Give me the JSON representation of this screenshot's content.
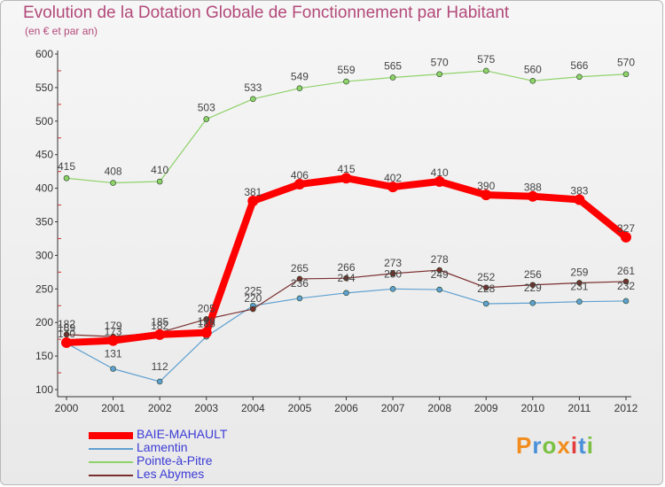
{
  "header": {
    "title": "Evolution de la Dotation Globale de Fonctionnement par Habitant",
    "subtitle": "(en € et par an)"
  },
  "logo": {
    "letters": [
      "P",
      "r",
      "o",
      "x",
      "i",
      "t",
      "i"
    ],
    "colors": [
      "#f28c1c",
      "#4a90d9",
      "#7ac143",
      "#f28c1c",
      "#e23c3c",
      "#4a90d9",
      "#7ac143"
    ]
  },
  "chart_data": {
    "type": "line",
    "title": "Evolution de la Dotation Globale de Fonctionnement par Habitant",
    "subtitle": "(en € et par an)",
    "x": [
      2000,
      2001,
      2002,
      2003,
      2004,
      2005,
      2006,
      2007,
      2008,
      2009,
      2010,
      2011,
      2012
    ],
    "xlabels": [
      "2000",
      "2001",
      "2002",
      "2003",
      "2004",
      "2005",
      "2006",
      "2007",
      "2008",
      "2009",
      "2010",
      "2011",
      "2012"
    ],
    "ylim": [
      100,
      600
    ],
    "yticks": [
      100,
      150,
      200,
      250,
      300,
      350,
      400,
      450,
      500,
      550,
      600
    ],
    "grid": false,
    "legend_position": "bottom-left",
    "series": [
      {
        "name": "BAIE-MAHAULT",
        "color": "#ff0000",
        "values": [
          170,
          173,
          182,
          185,
          381,
          406,
          415,
          402,
          410,
          390,
          388,
          383,
          327
        ],
        "labels": [
          "170",
          "173",
          "182",
          "185",
          "381",
          "406",
          "415",
          "402",
          "410",
          "390",
          "388",
          "383",
          "327"
        ]
      },
      {
        "name": "Lamentin",
        "color": "#5fa0d0",
        "values": [
          169,
          131,
          112,
          179,
          225,
          236,
          244,
          250,
          249,
          228,
          229,
          231,
          232
        ],
        "labels": [
          "169",
          "131",
          "112",
          "179",
          "225",
          "236",
          "244",
          "250",
          "249",
          "228",
          "229",
          "231",
          "232"
        ]
      },
      {
        "name": "Pointe-à-Pitre",
        "color": "#8fd26a",
        "values": [
          415,
          408,
          410,
          503,
          533,
          549,
          559,
          565,
          570,
          575,
          560,
          566,
          570
        ],
        "labels": [
          "415",
          "408",
          "410",
          "503",
          "533",
          "549",
          "559",
          "565",
          "570",
          "575",
          "560",
          "566",
          "570"
        ]
      },
      {
        "name": "Les Abymes",
        "color": "#7a2e2e",
        "values": [
          182,
          179,
          185,
          205,
          220,
          265,
          266,
          273,
          278,
          252,
          256,
          259,
          261
        ],
        "labels": [
          "182",
          "179",
          "185",
          "205",
          "220",
          "265",
          "266",
          "273",
          "278",
          "252",
          "256",
          "259",
          "261"
        ]
      }
    ]
  }
}
